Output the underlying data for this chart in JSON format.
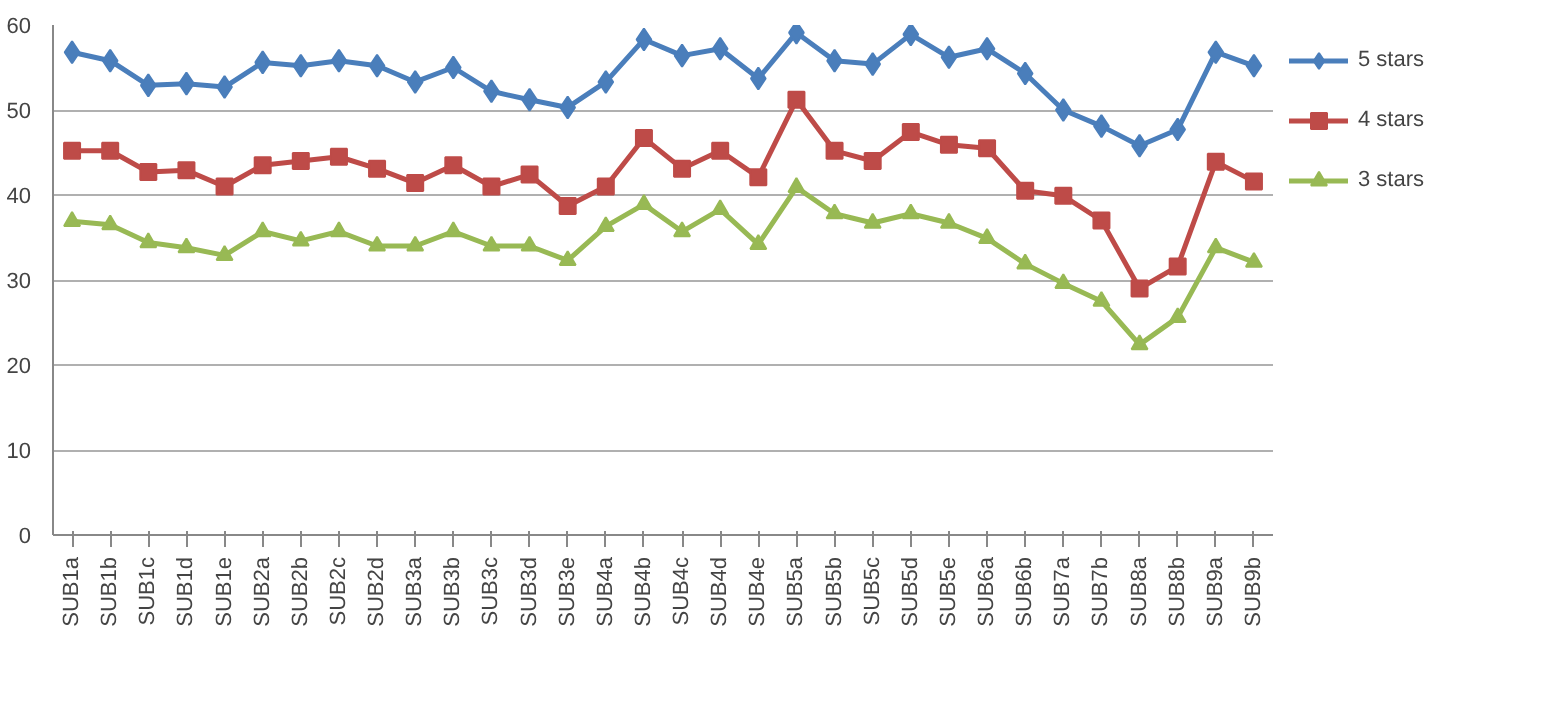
{
  "chart_data": {
    "type": "line",
    "categories": [
      "SUB1a",
      "SUB1b",
      "SUB1c",
      "SUB1d",
      "SUB1e",
      "SUB2a",
      "SUB2b",
      "SUB2c",
      "SUB2d",
      "SUB3a",
      "SUB3b",
      "SUB3c",
      "SUB3d",
      "SUB3e",
      "SUB4a",
      "SUB4b",
      "SUB4c",
      "SUB4d",
      "SUB4e",
      "SUB5a",
      "SUB5b",
      "SUB5c",
      "SUB5d",
      "SUB5e",
      "SUB6a",
      "SUB6b",
      "SUB7a",
      "SUB7b",
      "SUB8a",
      "SUB8b",
      "SUB9a",
      "SUB9b"
    ],
    "series": [
      {
        "name": "5 stars",
        "color": "#4a7ebb",
        "marker": "diamond",
        "values": [
          56.8,
          55.8,
          52.9,
          53.1,
          52.7,
          55.6,
          55.2,
          55.8,
          55.2,
          53.3,
          55.0,
          52.2,
          51.2,
          50.3,
          53.3,
          58.3,
          56.4,
          57.2,
          53.7,
          59.1,
          55.8,
          55.4,
          58.9,
          56.2,
          57.2,
          54.3,
          50.0,
          48.1,
          45.8,
          47.7,
          56.8,
          55.2
        ]
      },
      {
        "name": "4 stars",
        "color": "#be4b48",
        "marker": "square",
        "values": [
          45.2,
          45.2,
          42.7,
          42.9,
          41.0,
          43.5,
          44.0,
          44.5,
          43.1,
          41.4,
          43.5,
          41.0,
          42.4,
          38.7,
          41.0,
          46.7,
          43.1,
          45.2,
          42.1,
          51.2,
          45.2,
          44.0,
          47.4,
          45.9,
          45.5,
          40.5,
          39.9,
          37.0,
          29.0,
          31.6,
          43.9,
          41.6
        ]
      },
      {
        "name": "3 stars",
        "color": "#98b954",
        "marker": "triangle",
        "values": [
          36.9,
          36.5,
          34.4,
          33.8,
          32.9,
          35.7,
          34.6,
          35.7,
          34.0,
          34.0,
          35.7,
          34.0,
          34.0,
          32.3,
          36.3,
          38.9,
          35.7,
          38.3,
          34.2,
          40.9,
          37.8,
          36.7,
          37.8,
          36.7,
          34.9,
          31.9,
          29.6,
          27.5,
          22.4,
          25.6,
          33.8,
          32.1
        ]
      }
    ],
    "ylim": [
      0,
      60
    ],
    "yticks": [
      0,
      10,
      20,
      30,
      40,
      50,
      60
    ],
    "grid": "y",
    "legend": "right"
  }
}
